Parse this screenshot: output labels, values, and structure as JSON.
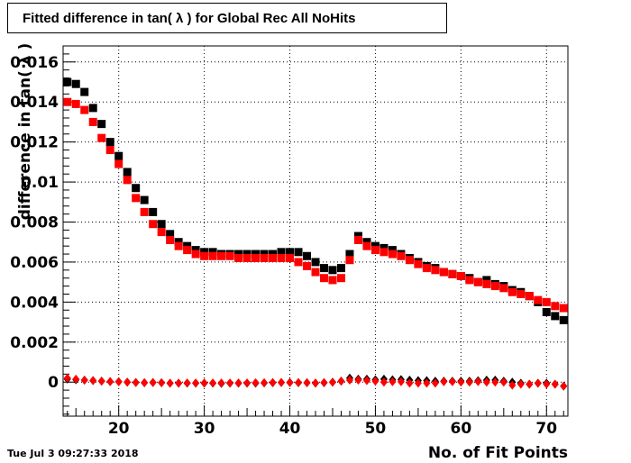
{
  "chart_data": {
    "type": "scatter",
    "title": "Fitted difference in tan( λ ) for Global Rec All NoHits",
    "xlabel": "No. of Fit Points",
    "ylabel": "difference in tan( λ )",
    "xlim": [
      13.5,
      72.5
    ],
    "ylim": [
      -0.0017,
      0.0168
    ],
    "grid": true,
    "x_ticks": [
      20,
      30,
      40,
      50,
      60,
      70
    ],
    "x_tick_labels": [
      "20",
      "30",
      "40",
      "50",
      "60",
      "70"
    ],
    "y_ticks": [
      0,
      0.002,
      0.004,
      0.006,
      0.008,
      0.01,
      0.012,
      0.014,
      0.016
    ],
    "y_tick_labels": [
      "0",
      "0.002",
      "0.004",
      "0.006",
      "0.008",
      "0.01",
      "0.012",
      "0.014",
      "0.016"
    ],
    "x": [
      14,
      15,
      16,
      17,
      18,
      19,
      20,
      21,
      22,
      23,
      24,
      25,
      26,
      27,
      28,
      29,
      30,
      31,
      32,
      33,
      34,
      35,
      36,
      37,
      38,
      39,
      40,
      41,
      42,
      43,
      44,
      45,
      46,
      47,
      48,
      49,
      50,
      51,
      52,
      53,
      54,
      55,
      56,
      57,
      58,
      59,
      60,
      61,
      62,
      63,
      64,
      65,
      66,
      67,
      68,
      69,
      70,
      71,
      72
    ],
    "series": [
      {
        "marker": "square",
        "color": "#000000",
        "values": [
          0.015,
          0.0149,
          0.0145,
          0.0137,
          0.0129,
          0.012,
          0.0113,
          0.0105,
          0.0097,
          0.0091,
          0.0085,
          0.0079,
          0.0074,
          0.007,
          0.0068,
          0.0066,
          0.0065,
          0.0065,
          0.0064,
          0.0064,
          0.0064,
          0.0064,
          0.0064,
          0.0064,
          0.0064,
          0.0065,
          0.0065,
          0.0065,
          0.0063,
          0.006,
          0.0057,
          0.0056,
          0.0057,
          0.0064,
          0.0073,
          0.007,
          0.0068,
          0.0067,
          0.0066,
          0.0064,
          0.0062,
          0.006,
          0.0058,
          0.0057,
          0.0055,
          0.0054,
          0.0053,
          0.0052,
          0.005,
          0.0051,
          0.0049,
          0.0048,
          0.0046,
          0.0045,
          0.0043,
          0.004,
          0.0035,
          0.0033,
          0.0031
        ]
      },
      {
        "marker": "square",
        "color": "#ff0000",
        "values": [
          0.014,
          0.0139,
          0.0136,
          0.013,
          0.0122,
          0.0116,
          0.0109,
          0.0101,
          0.0092,
          0.0085,
          0.0079,
          0.0075,
          0.0071,
          0.0068,
          0.0066,
          0.0064,
          0.0063,
          0.0063,
          0.0063,
          0.0063,
          0.0062,
          0.0062,
          0.0062,
          0.0062,
          0.0062,
          0.0062,
          0.0062,
          0.006,
          0.0058,
          0.0055,
          0.0052,
          0.0051,
          0.0052,
          0.0061,
          0.0071,
          0.0068,
          0.0066,
          0.0065,
          0.0064,
          0.0063,
          0.0061,
          0.0059,
          0.0057,
          0.0056,
          0.0055,
          0.0054,
          0.0053,
          0.0051,
          0.005,
          0.0049,
          0.0048,
          0.0047,
          0.0045,
          0.0044,
          0.0043,
          0.0041,
          0.004,
          0.0038,
          0.0037
        ]
      },
      {
        "marker": "diamond",
        "color": "#000000",
        "values": [
          0.00015,
          0.00012,
          0.0001,
          8e-05,
          5e-05,
          3e-05,
          2e-05,
          0.0,
          -2e-05,
          -3e-05,
          -2e-05,
          -3e-05,
          -5e-05,
          -5e-05,
          -5e-05,
          -5e-05,
          -5e-05,
          -5e-05,
          -6e-05,
          -5e-05,
          -5e-05,
          -5e-05,
          -5e-05,
          -4e-05,
          -3e-05,
          -2e-05,
          -2e-05,
          -3e-05,
          -3e-05,
          -5e-05,
          -3e-05,
          0.0,
          5e-05,
          0.0002,
          0.00015,
          0.00015,
          0.00012,
          0.00015,
          0.00012,
          0.00013,
          0.0001,
          8e-05,
          8e-05,
          5e-05,
          5e-05,
          5e-05,
          5e-05,
          5e-05,
          7e-05,
          0.0001,
          0.0001,
          5e-05,
          0.0,
          -5e-05,
          -0.0001,
          -5e-05,
          -5e-05,
          -0.0001,
          -0.0002
        ]
      },
      {
        "marker": "diamond",
        "color": "#ff0000",
        "values": [
          0.0002,
          0.00015,
          0.0001,
          8e-05,
          5e-05,
          3e-05,
          2e-05,
          0.0,
          -2e-05,
          -3e-05,
          -2e-05,
          -3e-05,
          -5e-05,
          -5e-05,
          -4e-05,
          -4e-05,
          -4e-05,
          -4e-05,
          -4e-05,
          -4e-05,
          -4e-05,
          -4e-05,
          -3e-05,
          -3e-05,
          -2e-05,
          -2e-05,
          -2e-05,
          -2e-05,
          -3e-05,
          -4e-05,
          -2e-05,
          0.0,
          5e-05,
          0.0001,
          0.0001,
          8e-05,
          5e-05,
          0.0,
          2e-05,
          2e-05,
          -5e-05,
          -5e-05,
          -5e-05,
          -5e-05,
          2e-05,
          2e-05,
          0.0,
          0.0,
          3e-05,
          0.0,
          0.0,
          0.0,
          -0.00015,
          -0.0001,
          -0.0001,
          -5e-05,
          -0.0001,
          -0.0001,
          -0.0002
        ]
      }
    ]
  },
  "timestamp": "Tue Jul  3 09:27:33 2018"
}
